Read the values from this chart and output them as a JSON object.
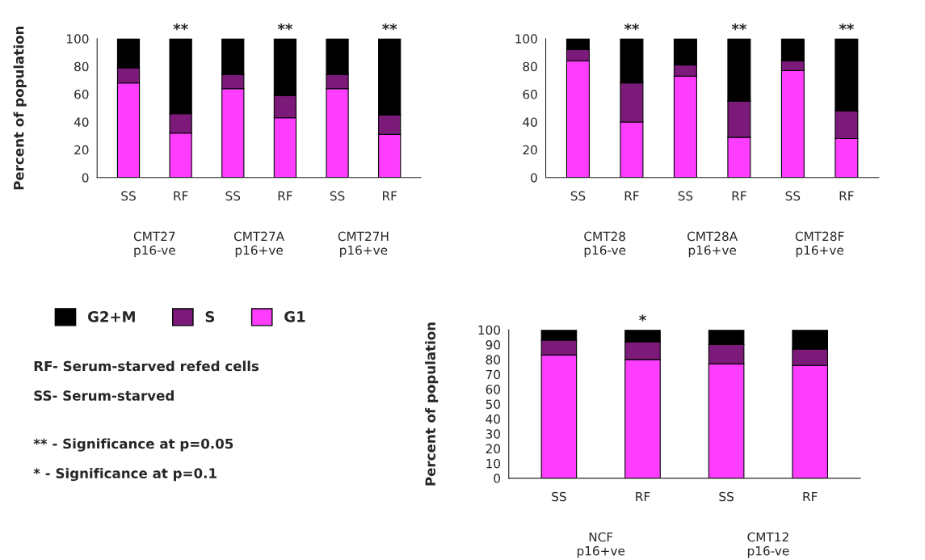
{
  "chart_data": [
    {
      "type": "bar",
      "stacked": true,
      "ylabel": "Percent of population",
      "categories": [
        "SS",
        "RF",
        "SS",
        "RF",
        "SS",
        "RF"
      ],
      "ylim": [
        0,
        100
      ],
      "yticks": [
        0,
        20,
        40,
        60,
        80,
        100
      ],
      "legend": "bottom left",
      "series": [
        {
          "name": "G1",
          "color": "#ff3dff",
          "values": [
            68,
            32,
            64,
            43,
            64,
            31
          ]
        },
        {
          "name": "S",
          "color": "#7b1a78",
          "values": [
            11,
            14,
            10,
            16,
            10,
            14
          ]
        },
        {
          "name": "G2+M",
          "color": "#000000",
          "values": [
            21,
            54,
            26,
            41,
            26,
            55
          ],
          "value_labels": [
            null,
            "**",
            null,
            "**",
            null,
            "**"
          ]
        }
      ],
      "annotations": [
        "CMT27\np16-ve",
        "CMT27A\np16+ve",
        "CMT27H\np16+ve"
      ]
    },
    {
      "type": "bar",
      "stacked": true,
      "categories": [
        "SS",
        "RF",
        "SS",
        "RF",
        "SS",
        "RF"
      ],
      "ylim": [
        0,
        100
      ],
      "yticks": [
        0,
        20,
        40,
        60,
        80,
        100
      ],
      "series": [
        {
          "color": "#ff3dff",
          "values": [
            84,
            40,
            73,
            29,
            77,
            28
          ]
        },
        {
          "color": "#7b1a78",
          "values": [
            8,
            28,
            8,
            26,
            7,
            20
          ]
        },
        {
          "color": "#000000",
          "values": [
            8,
            32,
            19,
            45,
            16,
            52
          ],
          "value_labels": [
            null,
            "**",
            null,
            "**",
            null,
            "**"
          ]
        }
      ],
      "annotations": [
        "CMT28\np16-ve",
        "CMT28A\np16+ve",
        "CMT28F\np16+ve"
      ]
    },
    {
      "type": "other",
      "annotations": [
        "RF- Serum-starved refed cells",
        "SS- Serum-starved",
        "** - Significance at p=0.05",
        "* - Significance at p=0.1"
      ]
    },
    {
      "type": "bar",
      "stacked": true,
      "ylabel": "Percent of population",
      "categories": [
        "SS",
        "RF",
        "SS",
        "RF"
      ],
      "ylim": [
        0,
        100
      ],
      "yticks": [
        0,
        10,
        20,
        30,
        40,
        50,
        60,
        70,
        80,
        90,
        100
      ],
      "series": [
        {
          "color": "#ff3dff",
          "values": [
            83,
            80,
            77,
            76
          ]
        },
        {
          "color": "#7b1a78",
          "values": [
            10,
            12,
            13,
            11
          ]
        },
        {
          "color": "#000000",
          "values": [
            7,
            8,
            10,
            13
          ],
          "value_labels": [
            null,
            "*",
            null,
            null
          ]
        }
      ],
      "annotations": [
        "NCF\np16+ve",
        "CMT12\np16-ve"
      ]
    }
  ]
}
